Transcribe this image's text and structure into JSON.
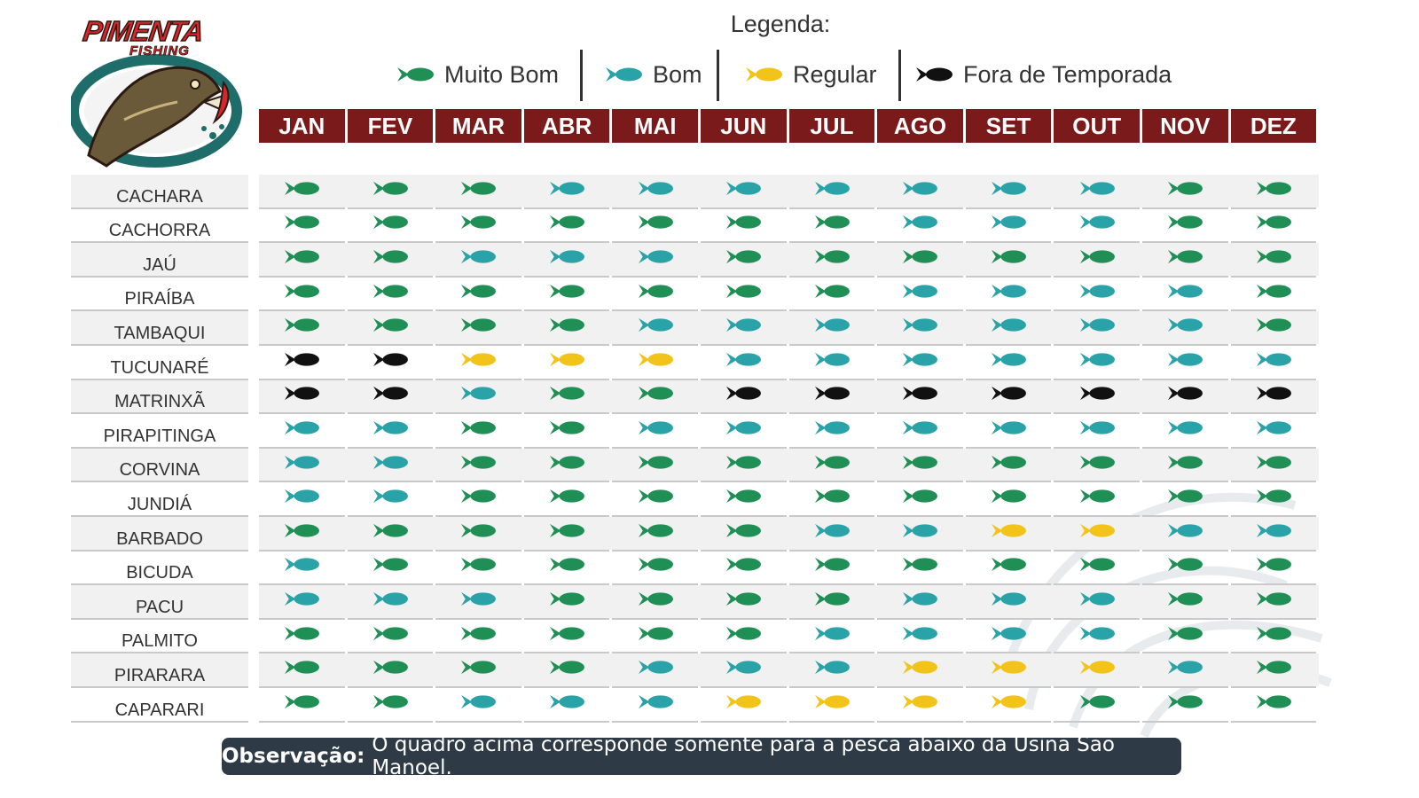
{
  "logo": {
    "text_main": "PIMENTA",
    "text_sub": "FISHING"
  },
  "legend": {
    "title": "Legenda:",
    "items": [
      {
        "key": "mb",
        "label": "Muito Bom",
        "color": "#1f8f55"
      },
      {
        "key": "b",
        "label": "Bom",
        "color": "#2aa3a8"
      },
      {
        "key": "r",
        "label": "Regular",
        "color": "#f2c318"
      },
      {
        "key": "f",
        "label": "Fora de Temporada",
        "color": "#111111"
      }
    ]
  },
  "months": [
    "JAN",
    "FEV",
    "MAR",
    "ABR",
    "MAI",
    "JUN",
    "JUL",
    "AGO",
    "SET",
    "OUT",
    "NOV",
    "DEZ"
  ],
  "table": [
    {
      "species": "CACHARA",
      "ratings": [
        "mb",
        "mb",
        "mb",
        "b",
        "b",
        "b",
        "b",
        "b",
        "b",
        "b",
        "mb",
        "mb"
      ]
    },
    {
      "species": "CACHORRA",
      "ratings": [
        "mb",
        "mb",
        "mb",
        "mb",
        "mb",
        "mb",
        "mb",
        "b",
        "b",
        "b",
        "mb",
        "mb"
      ]
    },
    {
      "species": "JAÚ",
      "ratings": [
        "mb",
        "mb",
        "b",
        "b",
        "b",
        "mb",
        "mb",
        "mb",
        "mb",
        "mb",
        "mb",
        "mb"
      ]
    },
    {
      "species": "PIRAÍBA",
      "ratings": [
        "mb",
        "mb",
        "mb",
        "mb",
        "mb",
        "mb",
        "mb",
        "b",
        "b",
        "b",
        "b",
        "mb"
      ]
    },
    {
      "species": "TAMBAQUI",
      "ratings": [
        "mb",
        "mb",
        "mb",
        "mb",
        "b",
        "b",
        "b",
        "b",
        "b",
        "b",
        "b",
        "mb"
      ]
    },
    {
      "species": "TUCUNARÉ",
      "ratings": [
        "f",
        "f",
        "r",
        "r",
        "r",
        "b",
        "b",
        "b",
        "b",
        "b",
        "b",
        "b"
      ]
    },
    {
      "species": "MATRINXÃ",
      "ratings": [
        "f",
        "f",
        "b",
        "mb",
        "mb",
        "f",
        "f",
        "f",
        "f",
        "f",
        "f",
        "f"
      ]
    },
    {
      "species": "PIRAPITINGA",
      "ratings": [
        "b",
        "b",
        "mb",
        "mb",
        "b",
        "b",
        "b",
        "b",
        "b",
        "b",
        "b",
        "b"
      ]
    },
    {
      "species": "CORVINA",
      "ratings": [
        "b",
        "b",
        "mb",
        "mb",
        "mb",
        "mb",
        "mb",
        "mb",
        "mb",
        "mb",
        "mb",
        "mb"
      ]
    },
    {
      "species": "JUNDIÁ",
      "ratings": [
        "b",
        "b",
        "mb",
        "mb",
        "mb",
        "mb",
        "mb",
        "mb",
        "mb",
        "mb",
        "mb",
        "mb"
      ]
    },
    {
      "species": "BARBADO",
      "ratings": [
        "mb",
        "mb",
        "mb",
        "mb",
        "mb",
        "mb",
        "b",
        "b",
        "r",
        "r",
        "b",
        "b"
      ]
    },
    {
      "species": "BICUDA",
      "ratings": [
        "b",
        "mb",
        "mb",
        "mb",
        "mb",
        "mb",
        "mb",
        "mb",
        "mb",
        "mb",
        "mb",
        "mb"
      ]
    },
    {
      "species": "PACU",
      "ratings": [
        "b",
        "b",
        "b",
        "mb",
        "mb",
        "mb",
        "mb",
        "b",
        "b",
        "b",
        "mb",
        "mb"
      ]
    },
    {
      "species": "PALMITO",
      "ratings": [
        "mb",
        "mb",
        "mb",
        "mb",
        "mb",
        "mb",
        "b",
        "b",
        "b",
        "b",
        "mb",
        "mb"
      ]
    },
    {
      "species": "PIRARARA",
      "ratings": [
        "mb",
        "mb",
        "mb",
        "mb",
        "b",
        "b",
        "b",
        "r",
        "r",
        "r",
        "b",
        "mb"
      ]
    },
    {
      "species": "CAPARARI",
      "ratings": [
        "mb",
        "mb",
        "b",
        "b",
        "b",
        "r",
        "r",
        "r",
        "r",
        "mb",
        "mb",
        "mb"
      ]
    }
  ],
  "note": {
    "label": "Observação:",
    "text": "O quadro acima corresponde somente para a pesca abaixo da Usina São Manoel."
  }
}
